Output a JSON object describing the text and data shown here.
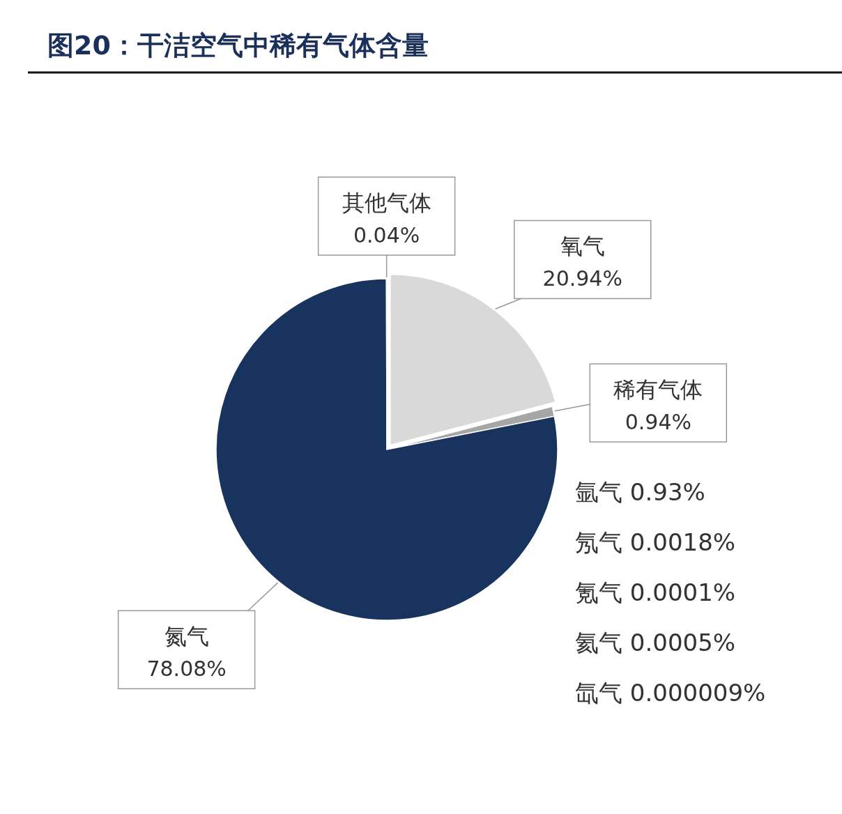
{
  "chart_data": {
    "type": "pie",
    "title": "图20：干洁空气中稀有气体含量",
    "categories": [
      "氧气",
      "稀有气体",
      "氮气",
      "其他气体"
    ],
    "values": [
      20.94,
      0.94,
      78.08,
      0.04
    ],
    "colors": [
      "#d9d9d9",
      "#a6a6a6",
      "#17335e",
      "#bfbfbf"
    ],
    "value_labels": [
      "20.94%",
      "0.94%",
      "78.08%",
      "0.04%"
    ],
    "annotations": [
      "氩气 0.93%",
      "氖气 0.0018%",
      "氪气 0.0001%",
      "氦气 0.0005%",
      "氙气 0.000009%"
    ]
  }
}
